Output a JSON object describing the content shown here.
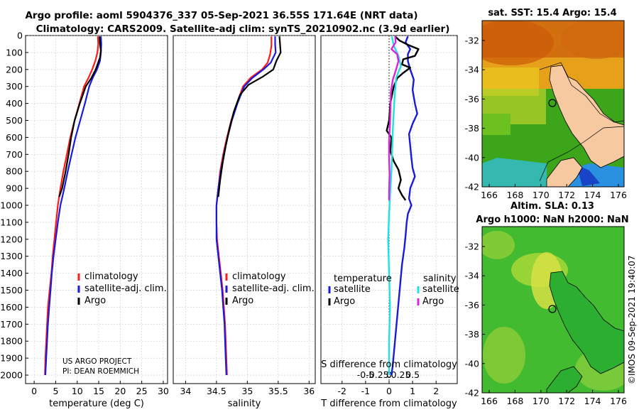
{
  "header": {
    "line1": "Argo profile: aoml 5904376_337 05-Sep-2021 36.55S 171.64E (NRT data)",
    "line2": "Climatology: CARS2009. Satellite-adj clim: synTS_20210902.nc (3.9d earlier)"
  },
  "credit": "©IMOS 09-Sep-2021 19:40:07",
  "colors": {
    "argo": "#000000",
    "climatology": "#ff1a1a",
    "satellite_adj": "#1a1add",
    "sat_diff_s": "#22e0e0",
    "argo_diff_s": "#dd22dd",
    "grid": "#b8b8b8"
  },
  "chart_data": [
    {
      "id": "temperature",
      "type": "line",
      "xlabel": "temperature (deg C)",
      "ylabel": "",
      "xlim": [
        -2,
        31
      ],
      "ylim": [
        2050,
        0
      ],
      "xticks": [
        0,
        5,
        10,
        15,
        20,
        25,
        30
      ],
      "xticklabels": [
        "0",
        "5",
        "10",
        "15",
        "20",
        "25",
        "30"
      ],
      "yticks": [
        0,
        100,
        200,
        300,
        400,
        500,
        600,
        700,
        800,
        900,
        1000,
        1100,
        1200,
        1300,
        1400,
        1500,
        1600,
        1700,
        1800,
        1900,
        2000
      ],
      "yticklabels": [
        "0",
        "100",
        "200",
        "300",
        "400",
        "500",
        "600",
        "700",
        "800",
        "900",
        "1000",
        "1100",
        "1200",
        "1300",
        "1400",
        "1500",
        "1600",
        "1700",
        "1800",
        "1900",
        "2000"
      ],
      "legend": [
        {
          "label": "climatology",
          "color": "#ff1a1a"
        },
        {
          "label": "satellite-adj. clim.",
          "color": "#1a1add"
        },
        {
          "label": "Argo",
          "color": "#000000"
        }
      ],
      "annotation": [
        "US ARGO PROJECT",
        "PI: DEAN ROEMMICH"
      ],
      "series": [
        {
          "name": "climatology",
          "color": "#ff1a1a",
          "width": 2.2,
          "points": [
            [
              14.8,
              5
            ],
            [
              14.9,
              50
            ],
            [
              14.7,
              100
            ],
            [
              14.2,
              150
            ],
            [
              13.5,
              200
            ],
            [
              12.6,
              250
            ],
            [
              11.6,
              300
            ],
            [
              10.5,
              400
            ],
            [
              9.4,
              500
            ],
            [
              8.4,
              600
            ],
            [
              7.6,
              700
            ],
            [
              6.8,
              800
            ],
            [
              6.1,
              900
            ],
            [
              5.5,
              1000
            ],
            [
              5.1,
              1100
            ],
            [
              4.7,
              1200
            ],
            [
              4.3,
              1300
            ],
            [
              4.0,
              1400
            ],
            [
              3.6,
              1500
            ],
            [
              3.2,
              1600
            ],
            [
              3.0,
              1700
            ],
            [
              2.8,
              1800
            ],
            [
              2.6,
              1900
            ],
            [
              2.5,
              2000
            ]
          ]
        },
        {
          "name": "satellite-adj. clim.",
          "color": "#1a1add",
          "width": 2.2,
          "points": [
            [
              15.5,
              5
            ],
            [
              15.6,
              50
            ],
            [
              15.5,
              100
            ],
            [
              15.3,
              150
            ],
            [
              14.6,
              200
            ],
            [
              13.6,
              250
            ],
            [
              12.8,
              300
            ],
            [
              11.8,
              400
            ],
            [
              10.7,
              500
            ],
            [
              9.6,
              600
            ],
            [
              8.7,
              700
            ],
            [
              7.8,
              800
            ],
            [
              7.0,
              900
            ],
            [
              6.1,
              1000
            ],
            [
              5.5,
              1100
            ],
            [
              5.0,
              1200
            ],
            [
              4.5,
              1300
            ],
            [
              4.1,
              1400
            ],
            [
              3.8,
              1500
            ],
            [
              3.5,
              1600
            ],
            [
              3.2,
              1700
            ],
            [
              3.0,
              1800
            ],
            [
              2.8,
              1900
            ],
            [
              2.6,
              2000
            ]
          ]
        },
        {
          "name": "Argo",
          "color": "#000000",
          "width": 2.2,
          "points": [
            [
              15.2,
              5
            ],
            [
              15.3,
              50
            ],
            [
              15.5,
              90
            ],
            [
              15.3,
              130
            ],
            [
              14.3,
              200
            ],
            [
              13.3,
              250
            ],
            [
              12.0,
              300
            ],
            [
              10.6,
              400
            ],
            [
              9.4,
              500
            ],
            [
              8.6,
              600
            ],
            [
              8.0,
              700
            ],
            [
              7.3,
              800
            ],
            [
              6.5,
              900
            ],
            [
              5.8,
              950
            ]
          ]
        }
      ]
    },
    {
      "id": "salinity",
      "type": "line",
      "xlabel": "salinity",
      "xlim": [
        33.8,
        36.1
      ],
      "ylim": [
        2050,
        0
      ],
      "xticks": [
        34,
        34.5,
        35,
        35.5,
        36
      ],
      "xticklabels": [
        "34",
        "34.5",
        "35",
        "35.5",
        "36"
      ],
      "legend": [
        {
          "label": "climatology",
          "color": "#ff1a1a"
        },
        {
          "label": "satellite-adj. clim.",
          "color": "#1a1add"
        },
        {
          "label": "Argo",
          "color": "#000000"
        }
      ],
      "series": [
        {
          "name": "climatology",
          "color": "#ff1a1a",
          "width": 2.2,
          "points": [
            [
              35.39,
              5
            ],
            [
              35.39,
              60
            ],
            [
              35.37,
              110
            ],
            [
              35.33,
              160
            ],
            [
              35.24,
              200
            ],
            [
              35.05,
              250
            ],
            [
              34.93,
              300
            ],
            [
              34.83,
              400
            ],
            [
              34.74,
              500
            ],
            [
              34.67,
              600
            ],
            [
              34.61,
              700
            ],
            [
              34.56,
              800
            ],
            [
              34.53,
              900
            ],
            [
              34.5,
              1000
            ],
            [
              34.5,
              1100
            ],
            [
              34.51,
              1200
            ],
            [
              34.54,
              1300
            ],
            [
              34.57,
              1400
            ],
            [
              34.6,
              1500
            ],
            [
              34.62,
              1600
            ],
            [
              34.64,
              1700
            ],
            [
              34.65,
              1800
            ],
            [
              34.66,
              1900
            ],
            [
              34.67,
              2000
            ]
          ]
        },
        {
          "name": "satellite-adj. clim.",
          "color": "#1a1add",
          "width": 2.2,
          "points": [
            [
              35.45,
              5
            ],
            [
              35.45,
              50
            ],
            [
              35.46,
              100
            ],
            [
              35.38,
              160
            ],
            [
              35.26,
              200
            ],
            [
              35.08,
              250
            ],
            [
              34.95,
              300
            ],
            [
              34.84,
              400
            ],
            [
              34.75,
              500
            ],
            [
              34.68,
              600
            ],
            [
              34.62,
              700
            ],
            [
              34.57,
              800
            ],
            [
              34.53,
              900
            ],
            [
              34.5,
              1000
            ],
            [
              34.5,
              1100
            ],
            [
              34.5,
              1200
            ],
            [
              34.53,
              1300
            ],
            [
              34.56,
              1400
            ],
            [
              34.59,
              1500
            ],
            [
              34.61,
              1600
            ],
            [
              34.63,
              1700
            ],
            [
              34.64,
              1800
            ],
            [
              34.65,
              1900
            ],
            [
              34.66,
              2000
            ]
          ]
        },
        {
          "name": "Argo",
          "color": "#000000",
          "width": 2.2,
          "points": [
            [
              35.52,
              5
            ],
            [
              35.53,
              50
            ],
            [
              35.54,
              100
            ],
            [
              35.47,
              150
            ],
            [
              35.42,
              200
            ],
            [
              35.26,
              240
            ],
            [
              35.02,
              290
            ],
            [
              34.88,
              350
            ],
            [
              34.78,
              450
            ],
            [
              34.71,
              550
            ],
            [
              34.65,
              650
            ],
            [
              34.6,
              750
            ],
            [
              34.56,
              850
            ],
            [
              34.53,
              950
            ]
          ]
        }
      ]
    },
    {
      "id": "difference",
      "type": "line",
      "xlabel": "T difference from climatology",
      "xlabel_top": "S difference from climatology",
      "xlim": [
        -2.9,
        2.9
      ],
      "ylim": [
        2050,
        0
      ],
      "xticks": [
        -2,
        -1,
        0,
        1,
        2
      ],
      "xticklabels": [
        "-2",
        "-1",
        "0",
        "1",
        "2"
      ],
      "sticks": [
        -0.5,
        -0.25,
        0,
        0.25,
        0.5
      ],
      "sticklabels": [
        "-0.5",
        "-0.25",
        "0",
        "0.25",
        "0.5"
      ],
      "legend_left_title": "temperature",
      "legend_right_title": "salinity",
      "legend_left": [
        {
          "label": "satellite",
          "color": "#1a1add"
        },
        {
          "label": "Argo",
          "color": "#000000"
        }
      ],
      "legend_right": [
        {
          "label": "satellite",
          "color": "#22e0e0"
        },
        {
          "label": "Argo",
          "color": "#dd22dd"
        }
      ],
      "series": [
        {
          "name": "T satellite",
          "color": "#1a1add",
          "width": 2.4,
          "points": [
            [
              0.8,
              5
            ],
            [
              0.7,
              40
            ],
            [
              0.9,
              80
            ],
            [
              0.8,
              110
            ],
            [
              0.8,
              150
            ],
            [
              0.9,
              200
            ],
            [
              1.05,
              260
            ],
            [
              1.0,
              320
            ],
            [
              1.1,
              400
            ],
            [
              1.2,
              460
            ],
            [
              1.0,
              520
            ],
            [
              0.85,
              580
            ],
            [
              0.9,
              650
            ],
            [
              0.95,
              720
            ],
            [
              1.0,
              780
            ],
            [
              1.1,
              830
            ],
            [
              0.9,
              900
            ],
            [
              0.85,
              960
            ],
            [
              0.95,
              1000
            ],
            [
              0.8,
              1050
            ],
            [
              0.75,
              1100
            ],
            [
              0.7,
              1180
            ],
            [
              0.65,
              1250
            ],
            [
              0.55,
              1350
            ],
            [
              0.45,
              1500
            ],
            [
              0.35,
              1650
            ],
            [
              0.25,
              1800
            ],
            [
              0.15,
              1950
            ],
            [
              0.1,
              2000
            ]
          ]
        },
        {
          "name": "T Argo",
          "color": "#000000",
          "width": 2.4,
          "points": [
            [
              0.25,
              5
            ],
            [
              0.45,
              30
            ],
            [
              0.8,
              55
            ],
            [
              1.25,
              80
            ],
            [
              1.1,
              120
            ],
            [
              0.6,
              140
            ],
            [
              0.55,
              170
            ],
            [
              0.9,
              190
            ],
            [
              0.6,
              220
            ],
            [
              0.35,
              250
            ],
            [
              0.2,
              300
            ],
            [
              0.05,
              400
            ],
            [
              0.0,
              500
            ],
            [
              -0.1,
              560
            ],
            [
              0.1,
              600
            ],
            [
              0.05,
              680
            ],
            [
              0.2,
              740
            ],
            [
              0.4,
              790
            ],
            [
              0.5,
              850
            ],
            [
              0.4,
              900
            ],
            [
              0.55,
              940
            ],
            [
              0.7,
              970
            ]
          ]
        },
        {
          "name": "S satellite",
          "color": "#22e0e0",
          "width": 2.4,
          "points": [
            [
              0.06,
              5
            ],
            [
              0.1,
              60
            ],
            [
              0.2,
              120
            ],
            [
              0.25,
              180
            ],
            [
              0.15,
              250
            ],
            [
              0.12,
              350
            ],
            [
              0.1,
              450
            ],
            [
              0.08,
              550
            ],
            [
              0.07,
              650
            ],
            [
              0.05,
              800
            ],
            [
              0.02,
              950
            ],
            [
              0.0,
              1050
            ],
            [
              -0.02,
              1200
            ],
            [
              0.0,
              1400
            ],
            [
              0.02,
              1600
            ],
            [
              0.0,
              1800
            ],
            [
              0.0,
              2000
            ]
          ]
        },
        {
          "name": "S Argo",
          "color": "#dd22dd",
          "width": 2.4,
          "points": [
            [
              0.13,
              5
            ],
            [
              0.14,
              40
            ],
            [
              0.05,
              80
            ],
            [
              0.17,
              110
            ],
            [
              0.2,
              150
            ],
            [
              0.15,
              200
            ],
            [
              0.08,
              260
            ],
            [
              0.04,
              330
            ],
            [
              0.03,
              420
            ],
            [
              0.02,
              520
            ],
            [
              0.0,
              620
            ],
            [
              0.0,
              720
            ],
            [
              0.01,
              820
            ],
            [
              0.0,
              920
            ],
            [
              0.0,
              970
            ]
          ]
        }
      ]
    }
  ],
  "maps": [
    {
      "id": "sst",
      "title": "sat. SST: 15.4 Argo: 15.4",
      "xticks": [
        "166",
        "168",
        "170",
        "172",
        "174",
        "176"
      ],
      "yticks": [
        "-32",
        "-34",
        "-36",
        "-38",
        "-40",
        "-42"
      ]
    },
    {
      "id": "sla",
      "title1": "Altim. SLA: 0.13",
      "title2": "Argo h1000: NaN h2000: NaN",
      "xticks": [
        "166",
        "168",
        "170",
        "172",
        "174",
        "176"
      ],
      "yticks": [
        "-32",
        "-34",
        "-36",
        "-38",
        "-40",
        "-42"
      ]
    }
  ]
}
